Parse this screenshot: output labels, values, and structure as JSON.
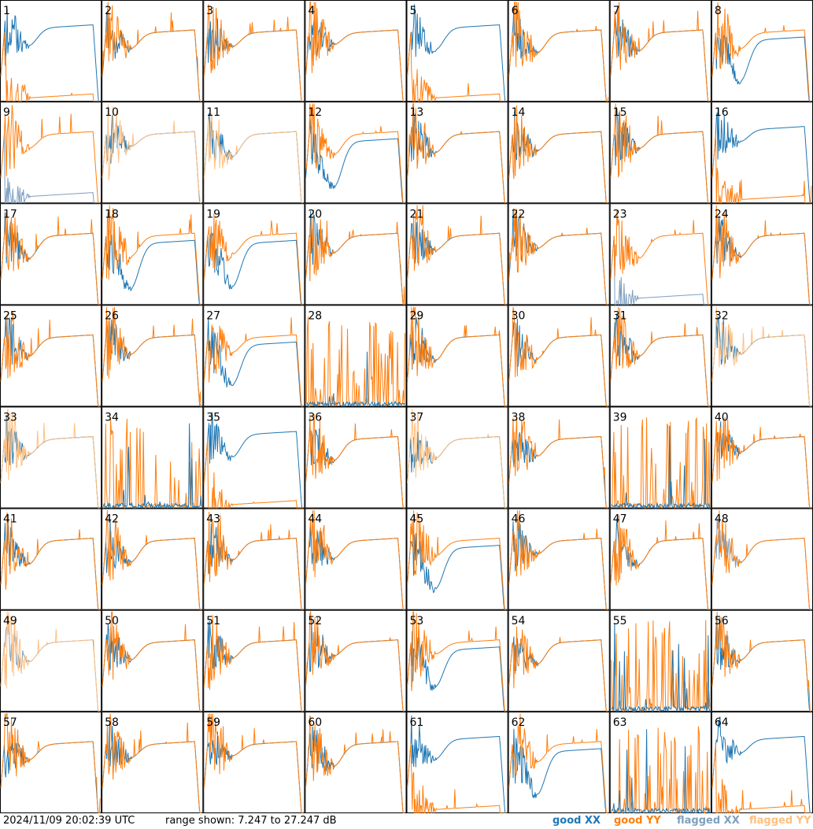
{
  "chart_data": {
    "type": "line",
    "grid": {
      "rows": 8,
      "cols": 8
    },
    "panel_labels": [
      "1",
      "2",
      "3",
      "4",
      "5",
      "6",
      "7",
      "8",
      "9",
      "10",
      "11",
      "12",
      "13",
      "14",
      "15",
      "16",
      "17",
      "18",
      "19",
      "20",
      "21",
      "22",
      "23",
      "24",
      "25",
      "26",
      "27",
      "28",
      "29",
      "30",
      "31",
      "32",
      "33",
      "34",
      "35",
      "36",
      "37",
      "38",
      "39",
      "40",
      "41",
      "42",
      "43",
      "44",
      "45",
      "46",
      "47",
      "48",
      "49",
      "50",
      "51",
      "52",
      "53",
      "54",
      "55",
      "56",
      "57",
      "58",
      "59",
      "60",
      "61",
      "62",
      "63",
      "64"
    ],
    "y_range_db": [
      7.247,
      27.247
    ],
    "panels_state": {
      "normal": [
        2,
        3,
        4,
        7,
        13,
        14,
        15,
        17,
        20,
        21,
        22,
        24,
        25,
        26,
        29,
        30,
        31,
        36,
        38,
        40,
        41,
        42,
        43,
        44,
        46,
        47,
        50,
        51,
        52,
        54,
        56,
        57,
        58,
        59,
        60
      ],
      "xx_high_yy_low": [
        1,
        5,
        16,
        35,
        61,
        64
      ],
      "yy_high_xx_low": [
        8,
        12,
        18,
        19,
        27,
        45,
        53,
        62
      ],
      "flagged_xx_panels": [
        9,
        23,
        48,
        49
      ],
      "flagged_yy_panels": [
        10,
        11,
        32,
        33,
        37,
        49
      ],
      "noise_panels": [
        28,
        34,
        39,
        55,
        63
      ]
    },
    "series": [
      {
        "key": "good_xx",
        "name": "good XX",
        "color": "#1f77b4"
      },
      {
        "key": "good_yy",
        "name": "good YY",
        "color": "#ff7f0e"
      },
      {
        "key": "flagged_xx",
        "name": "flagged XX",
        "color": "#7f9fbf"
      },
      {
        "key": "flagged_yy",
        "name": "flagged YY",
        "color": "#ffbf80"
      }
    ]
  },
  "footer": {
    "timestamp": "2024/11/09 20:02:39 UTC",
    "range_text": "range shown: 7.247 to 27.247 dB"
  }
}
